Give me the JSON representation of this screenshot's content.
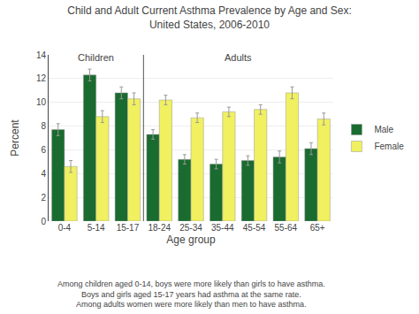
{
  "chart_data": {
    "type": "bar",
    "title": "Child and Adult Current Asthma Prevalence by Age and Sex:\nUnited States, 2006-2010",
    "x_label": "Age group",
    "y_label": "Percent",
    "categories": [
      "0-4",
      "5-14",
      "15-17",
      "18-24",
      "25-34",
      "35-44",
      "45-54",
      "55-64",
      "65+"
    ],
    "series": [
      {
        "name": "Male",
        "color": "#1a6b2f",
        "values": [
          7.7,
          12.3,
          10.8,
          7.3,
          5.2,
          4.8,
          5.1,
          5.4,
          6.1
        ],
        "errors": [
          0.5,
          0.5,
          0.5,
          0.4,
          0.4,
          0.4,
          0.4,
          0.5,
          0.5
        ]
      },
      {
        "name": "Female",
        "color": "#f0f060",
        "values": [
          4.6,
          8.8,
          10.3,
          10.2,
          8.7,
          9.2,
          9.4,
          10.8,
          8.6
        ],
        "errors": [
          0.5,
          0.5,
          0.5,
          0.4,
          0.4,
          0.4,
          0.4,
          0.5,
          0.5
        ]
      }
    ],
    "ylim": [
      0,
      14
    ],
    "yticks": [
      0,
      2,
      4,
      6,
      8,
      10,
      12,
      14
    ],
    "grid": true,
    "legend": "right",
    "annotations": [
      {
        "text": "Children",
        "x": 1.0,
        "y": 13.2
      },
      {
        "text": "Adults",
        "x": 5.5,
        "y": 13.2
      }
    ],
    "vline": 2.5,
    "footnote": "Among children aged 0-14, boys were more likely than girls to have asthma.\nBoys and girls aged 15-17 years had asthma at the same rate.\nAmong adults women were more likely than men to have asthma."
  }
}
